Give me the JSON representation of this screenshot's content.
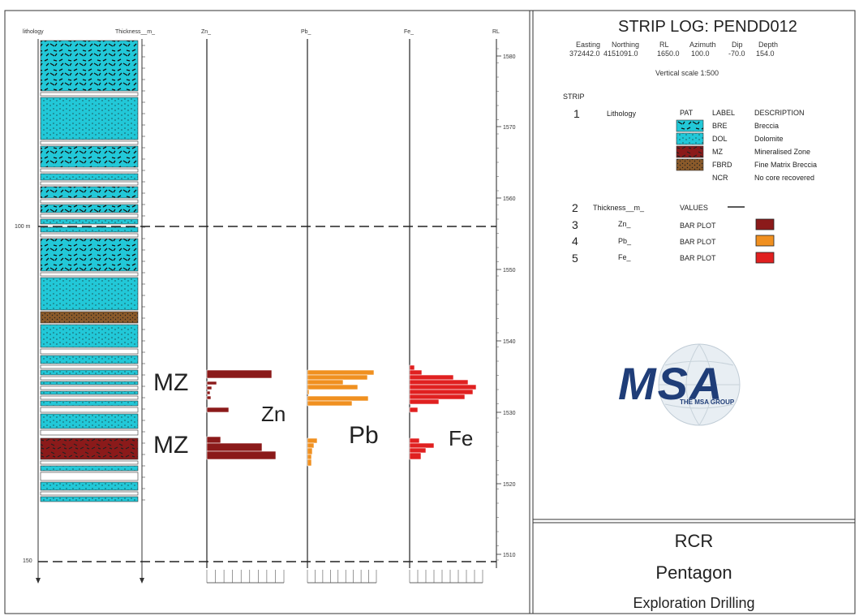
{
  "header": {
    "title": "STRIP LOG: PENDD012",
    "columns": [
      "Easting",
      "Northing",
      "RL",
      "Azimuth",
      "Dip",
      "Depth"
    ],
    "values": [
      "372442.0",
      "4151091.0",
      "1650.0",
      "100.0",
      "-70.0",
      "154.0"
    ],
    "vertical_scale": "Vertical scale 1:500"
  },
  "legend": {
    "strip_label": "STRIP",
    "strip1": {
      "number": "1",
      "name": "Lithology",
      "col_pat": "PAT",
      "col_label": "LABEL",
      "col_desc": "DESCRIPTION",
      "items": [
        {
          "code": "BRE",
          "desc": "Breccia",
          "color": "#22c8d8"
        },
        {
          "code": "DOL",
          "desc": "Dolomite",
          "color": "#22c8d8"
        },
        {
          "code": "MZ",
          "desc": "Mineralised Zone",
          "color": "#8b1a1a"
        },
        {
          "code": "FBRD",
          "desc": "Fine Matrix Breccia",
          "color": "#8a5a2a"
        },
        {
          "code": "NCR",
          "desc": "No core recovered",
          "color": ""
        }
      ]
    },
    "strips": [
      {
        "number": "2",
        "name": "Thickness__m_",
        "type": "VALUES",
        "color": "#000000"
      },
      {
        "number": "3",
        "name": "Zn_",
        "type": "BAR PLOT",
        "color": "#8b1a1a"
      },
      {
        "number": "4",
        "name": "Pb_",
        "type": "BAR PLOT",
        "color": "#f09020"
      },
      {
        "number": "5",
        "name": "Fe_",
        "type": "BAR PLOT",
        "color": "#e02020"
      }
    ]
  },
  "logo": {
    "text": "MSA",
    "subtitle": "THE MSA GROUP"
  },
  "title_block": {
    "line1": "RCR",
    "line2": "Pentagon",
    "line3": "Exploration Drilling"
  },
  "log": {
    "column_headers": {
      "lithology": "lithology",
      "thickness": "Thickness__m_",
      "zn": "Zn_",
      "pb": "Pb_",
      "fe": "Fe_",
      "rl": "RL"
    },
    "depth_markers": [
      "100 m",
      "150"
    ],
    "rl_ticks": [
      "1580",
      "1570",
      "1560",
      "1550",
      "1540",
      "1530",
      "1520",
      "1510"
    ],
    "annotations": {
      "mz_upper": "MZ",
      "mz_lower": "MZ",
      "zn": "Zn",
      "pb": "Pb",
      "fe": "Fe"
    },
    "colors": {
      "zn": "#8b1a1a",
      "pb": "#f09020",
      "fe": "#e02020",
      "bre": "#22c8d8",
      "mz": "#8b1a1a",
      "fbrd": "#8a5a2a"
    }
  }
}
